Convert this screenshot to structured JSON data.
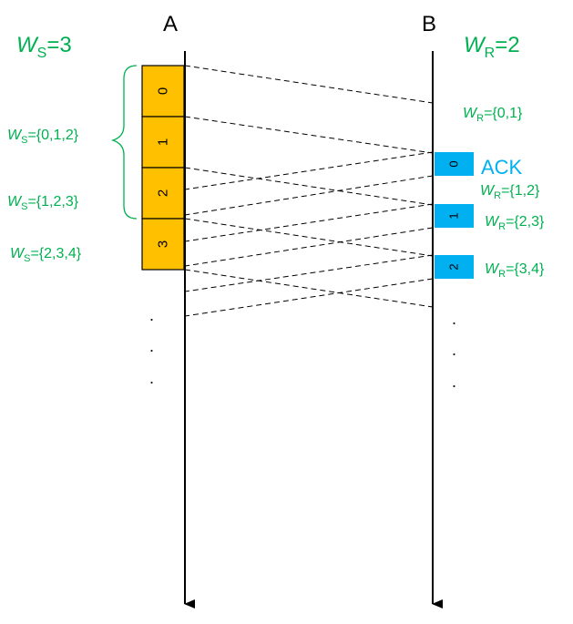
{
  "nodes": {
    "sender": "A",
    "receiver": "B"
  },
  "sender_window": {
    "var": "W",
    "sub": "S",
    "rest": "=3"
  },
  "receiver_window": {
    "var": "W",
    "sub": "R",
    "rest": "=2"
  },
  "frames": [
    "0",
    "1",
    "2",
    "3"
  ],
  "acks": [
    "0",
    "1",
    "2"
  ],
  "ack_label": "ACK",
  "sender_states": [
    {
      "var": "W",
      "sub": "S",
      "rest": "={0,1,2}"
    },
    {
      "var": "W",
      "sub": "S",
      "rest": "={1,2,3}"
    },
    {
      "var": "W",
      "sub": "S",
      "rest": "={2,3,4}"
    }
  ],
  "receiver_states": [
    {
      "var": "W",
      "sub": "R",
      "rest": "={0,1}"
    },
    {
      "var": "W",
      "sub": "R",
      "rest": "={1,2}"
    },
    {
      "var": "W",
      "sub": "R",
      "rest": "={2,3}"
    },
    {
      "var": "W",
      "sub": "R",
      "rest": "={3,4}"
    }
  ],
  "ellipsis": ".",
  "colors": {
    "frame_fill": "#FFC000",
    "ack_fill": "#00B0F0",
    "label_green": "#00B050",
    "ack_text": "#00B0F0",
    "line": "#000000"
  }
}
